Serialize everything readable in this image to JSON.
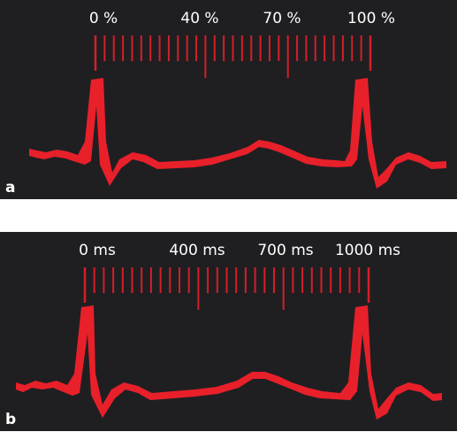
{
  "colors": {
    "background": "#1f1f22",
    "trace": "#e8202a",
    "ticks": "#d41f27",
    "text": "#ffffff"
  },
  "panels": [
    {
      "letter": "a",
      "labels": [
        "0 %",
        "40 %",
        "70 %",
        "100 %"
      ],
      "label_positions": [
        0,
        40,
        70,
        100
      ]
    },
    {
      "letter": "b",
      "labels": [
        "0 ms",
        "400 ms",
        "700 ms",
        "1000 ms"
      ],
      "label_positions": [
        0,
        400,
        700,
        1000
      ]
    }
  ]
}
